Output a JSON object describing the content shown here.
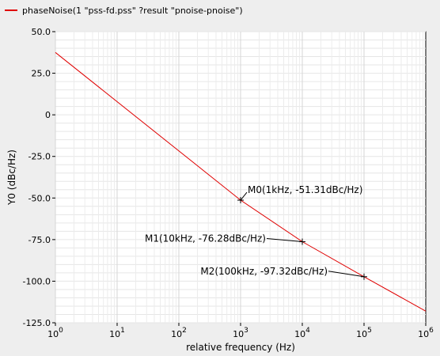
{
  "chart_data": {
    "type": "line",
    "title": "",
    "xlabel": "relative frequency (Hz)",
    "ylabel": "Y0 (dBc/Hz)",
    "xscale": "log",
    "xlim": [
      1,
      1000000
    ],
    "ylim": [
      -125,
      50
    ],
    "grid": true,
    "legend_placement": "top-left",
    "x_ticks": [
      {
        "base": "10",
        "exp": "0"
      },
      {
        "base": "10",
        "exp": "1"
      },
      {
        "base": "10",
        "exp": "2"
      },
      {
        "base": "10",
        "exp": "3"
      },
      {
        "base": "10",
        "exp": "4"
      },
      {
        "base": "10",
        "exp": "5"
      },
      {
        "base": "10",
        "exp": "6"
      }
    ],
    "y_ticks": [
      "50.0",
      "25.0",
      "0",
      "-25.0",
      "-50.0",
      "-75.0",
      "-100.0",
      "-125.0"
    ],
    "series": [
      {
        "name": "phaseNoise(1 \"pss-fd.pss\" ?result \"pnoise-pnoise\")",
        "color": "#e00000",
        "x": [
          1,
          1000,
          10000,
          100000,
          1000000
        ],
        "y": [
          37.5,
          -51.31,
          -76.28,
          -97.32,
          -118
        ]
      }
    ],
    "markers": [
      {
        "label": "M0(1kHz, -51.31dBc/Hz)",
        "x": 1000,
        "y": -51.31,
        "side": "right"
      },
      {
        "label": "M1(10kHz, -76.28dBc/Hz)",
        "x": 10000,
        "y": -76.28,
        "side": "left"
      },
      {
        "label": "M2(100kHz, -97.32dBc/Hz)",
        "x": 100000,
        "y": -97.32,
        "side": "left"
      }
    ]
  }
}
